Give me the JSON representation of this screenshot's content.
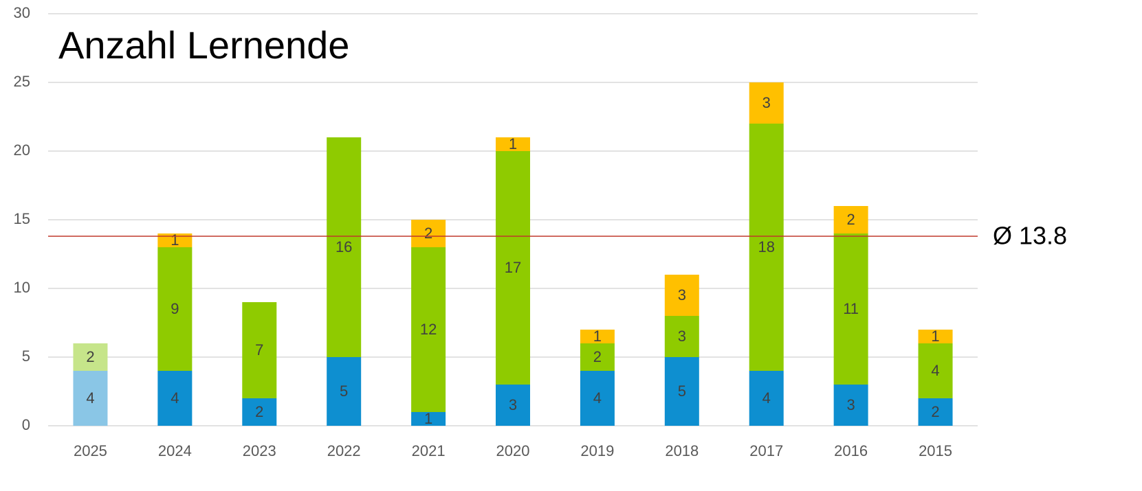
{
  "chart_data": {
    "type": "stacked_bar",
    "title": "Anzahl Lernende",
    "categories": [
      "2025",
      "2024",
      "2023",
      "2022",
      "2021",
      "2020",
      "2019",
      "2018",
      "2017",
      "2016",
      "2015"
    ],
    "series": [
      {
        "color": "#0e8fd0",
        "colors": [
          "#8ac6e6",
          "#0e8fd0",
          "#0e8fd0",
          "#0e8fd0",
          "#0e8fd0",
          "#0e8fd0",
          "#0e8fd0",
          "#0e8fd0",
          "#0e8fd0",
          "#0e8fd0",
          "#0e8fd0"
        ],
        "values": [
          4,
          4,
          2,
          5,
          1,
          3,
          4,
          5,
          4,
          3,
          2
        ]
      },
      {
        "color": "#8fcb00",
        "colors": [
          "#c6e58a",
          "#8fcb00",
          "#8fcb00",
          "#8fcb00",
          "#8fcb00",
          "#8fcb00",
          "#8fcb00",
          "#8fcb00",
          "#8fcb00",
          "#8fcb00",
          "#8fcb00"
        ],
        "values": [
          2,
          9,
          7,
          16,
          12,
          17,
          2,
          3,
          18,
          11,
          4
        ]
      },
      {
        "color": "#ffc000",
        "colors": [
          "#ffe08a",
          "#ffc000",
          "#ffc000",
          "#ffc000",
          "#ffc000",
          "#ffc000",
          "#ffc000",
          "#ffc000",
          "#ffc000",
          "#ffc000",
          "#ffc000"
        ],
        "values": [
          null,
          1,
          null,
          null,
          2,
          1,
          1,
          3,
          3,
          2,
          1
        ]
      }
    ],
    "ylim": [
      0,
      30
    ],
    "yticks": [
      0,
      5,
      10,
      15,
      20,
      25,
      30
    ],
    "grid": true,
    "reference_line": {
      "value": 13.8,
      "label": "Ø 13.8",
      "color": "#c0392b"
    }
  }
}
